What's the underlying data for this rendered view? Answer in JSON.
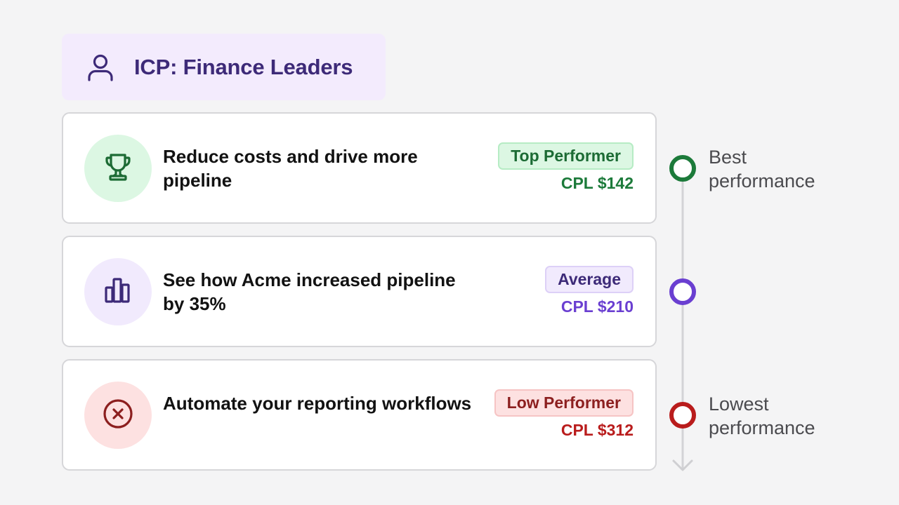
{
  "header": {
    "title": "ICP: Finance Leaders",
    "icon": "user-icon"
  },
  "cards": [
    {
      "message": "Reduce costs and drive more pipeline",
      "tag": "Top Performer",
      "cpl": "CPL $142",
      "icon": "trophy-icon",
      "accent": "#1c7a3a"
    },
    {
      "message": "See how Acme increased pipeline by 35%",
      "tag": "Average",
      "cpl": "CPL $210",
      "icon": "bar-chart-icon",
      "accent": "#6a3fd1"
    },
    {
      "message": "Automate your reporting workflows",
      "tag": "Low Performer",
      "cpl": "CPL $312",
      "icon": "x-circle-icon",
      "accent": "#b91c1c"
    }
  ],
  "scale": {
    "top_label": "Best performance",
    "bottom_label": "Lowest performance",
    "marker_colors": [
      "#1c7a3a",
      "#6a3fd1",
      "#b91c1c"
    ]
  }
}
